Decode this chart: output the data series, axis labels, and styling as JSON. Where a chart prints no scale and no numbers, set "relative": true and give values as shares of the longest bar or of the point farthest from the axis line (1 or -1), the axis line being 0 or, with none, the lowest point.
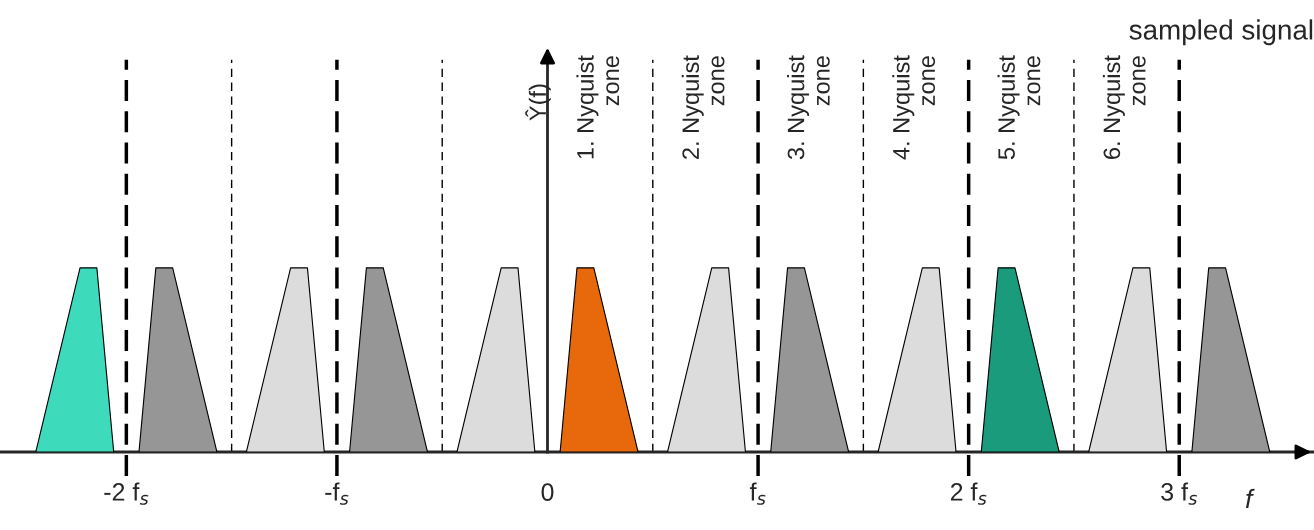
{
  "chart_data": {
    "type": "area",
    "relative": true,
    "title": "sampled signal",
    "xlabel": "f",
    "xlim": [
      -2.6,
      3.64
    ],
    "xticks": [
      {
        "value": -2,
        "label": "-2 f$_{s}$"
      },
      {
        "value": -1,
        "label": "-f$_{s}$"
      },
      0,
      {
        "value": 1,
        "label": "f$_{s}$"
      },
      {
        "value": 2,
        "label": "2 f$_{s}$"
      },
      {
        "value": 3,
        "label": "3 f$_{s}$"
      }
    ],
    "series": [
      {
        "color": "#3ddbbb",
        "x": [
          -2.43,
          -2.22,
          -2.14,
          -2.06
        ],
        "values": [
          0,
          1,
          1,
          0
        ]
      },
      {
        "color": "#969696",
        "x": [
          -1.94,
          -1.86,
          -1.78,
          -1.57
        ],
        "values": [
          0,
          1,
          1,
          0
        ]
      },
      {
        "color": "#dcdcdc",
        "x": [
          -1.43,
          -1.22,
          -1.14,
          -1.06
        ],
        "values": [
          0,
          1,
          1,
          0
        ]
      },
      {
        "color": "#969696",
        "x": [
          -0.94,
          -0.86,
          -0.78,
          -0.57
        ],
        "values": [
          0,
          1,
          1,
          0
        ]
      },
      {
        "color": "#dcdcdc",
        "x": [
          -0.43,
          -0.22,
          -0.14,
          -0.06
        ],
        "values": [
          0,
          1,
          1,
          0
        ]
      },
      {
        "color": "#e8690b",
        "x": [
          0.06,
          0.14,
          0.22,
          0.43
        ],
        "values": [
          0,
          1,
          1,
          0
        ]
      },
      {
        "color": "#dcdcdc",
        "x": [
          0.57,
          0.78,
          0.86,
          0.94
        ],
        "values": [
          0,
          1,
          1,
          0
        ]
      },
      {
        "color": "#969696",
        "x": [
          1.06,
          1.14,
          1.22,
          1.43
        ],
        "values": [
          0,
          1,
          1,
          0
        ]
      },
      {
        "color": "#dcdcdc",
        "x": [
          1.57,
          1.78,
          1.86,
          1.94
        ],
        "values": [
          0,
          1,
          1,
          0
        ]
      },
      {
        "color": "#1a9b7b",
        "x": [
          2.06,
          2.14,
          2.22,
          2.43
        ],
        "values": [
          0,
          1,
          1,
          0
        ]
      },
      {
        "color": "#dcdcdc",
        "x": [
          2.57,
          2.78,
          2.86,
          2.94
        ],
        "values": [
          0,
          1,
          1,
          0
        ]
      },
      {
        "color": "#969696",
        "x": [
          3.06,
          3.14,
          3.22,
          3.43
        ],
        "values": [
          0,
          1,
          1,
          0
        ]
      }
    ],
    "ref_lines": [
      {
        "axis": "x",
        "value": -2,
        "line_style": "dashed",
        "color": "#000000"
      },
      {
        "axis": "x",
        "value": -1.5,
        "line_style": "dotted",
        "color": "#000000"
      },
      {
        "axis": "x",
        "value": -1,
        "line_style": "dashed",
        "color": "#000000"
      },
      {
        "axis": "x",
        "value": -0.5,
        "line_style": "dotted",
        "color": "#000000"
      },
      {
        "axis": "x",
        "value": 0.5,
        "line_style": "dotted",
        "color": "#000000"
      },
      {
        "axis": "x",
        "value": 1,
        "line_style": "dashed",
        "color": "#000000"
      },
      {
        "axis": "x",
        "value": 1.5,
        "line_style": "dotted",
        "color": "#000000"
      },
      {
        "axis": "x",
        "value": 2,
        "line_style": "dashed",
        "color": "#000000"
      },
      {
        "axis": "x",
        "value": 2.5,
        "line_style": "dotted",
        "color": "#000000"
      },
      {
        "axis": "x",
        "value": 3,
        "line_style": "dashed",
        "color": "#000000"
      }
    ],
    "annotations": [
      "Ŷ(f)",
      "1. Nyquist\nzone",
      "2. Nyquist\nzone",
      "3. Nyquist\nzone",
      "4. Nyquist\nzone",
      "5. Nyquist\nzone",
      "6. Nyquist\nzone"
    ],
    "grid": false,
    "legend": false
  }
}
